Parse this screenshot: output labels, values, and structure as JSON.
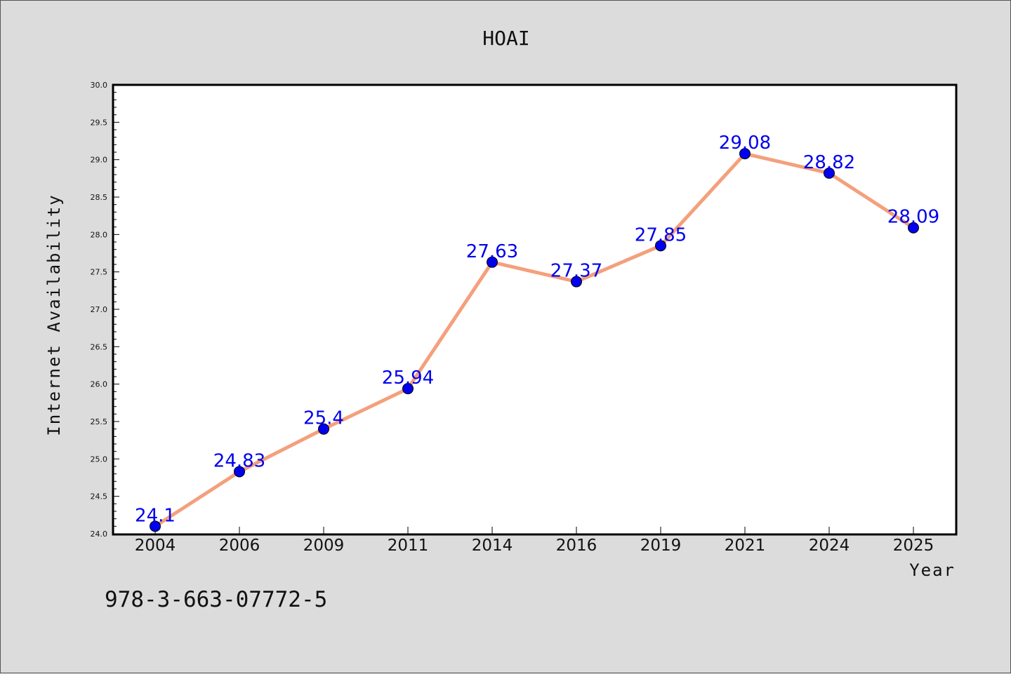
{
  "chart_data": {
    "type": "line",
    "title": "HOAI",
    "xlabel": "Year",
    "ylabel": "Internet Availability",
    "categories": [
      "2004",
      "2006",
      "2009",
      "2011",
      "2014",
      "2016",
      "2019",
      "2021",
      "2024",
      "2025"
    ],
    "series": [
      {
        "values": [
          24.1,
          24.83,
          25.4,
          25.94,
          27.63,
          27.37,
          27.85,
          29.08,
          28.82,
          28.09
        ],
        "labels": [
          "24.1",
          "24.83",
          "25.4",
          "25.94",
          "27.63",
          "27.37",
          "27.85",
          "29.08",
          "28.82",
          "28.09"
        ],
        "line_color": "#f4a07c",
        "marker_color": "#0000ee"
      }
    ],
    "ylim": [
      24.0,
      30.0
    ],
    "yticks": [
      "24.0",
      "24.5",
      "25.0",
      "25.5",
      "26.0",
      "26.5",
      "27.0",
      "27.5",
      "28.0",
      "28.5",
      "29.0",
      "29.5",
      "30.0"
    ],
    "grid": false,
    "legend": "none"
  },
  "footer": {
    "identifier": "978-3-663-07772-5"
  },
  "colors": {
    "background": "#dcdcdc",
    "plot_background": "#ffffff",
    "label_color": "#0000ee"
  }
}
